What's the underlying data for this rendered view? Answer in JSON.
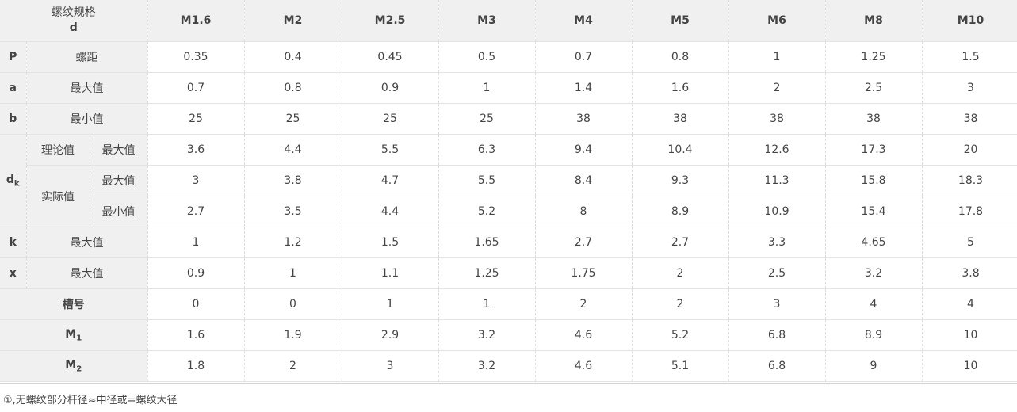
{
  "header": {
    "corner_line1": "螺纹规格",
    "corner_line2": "d",
    "sizes": [
      "M1.6",
      "M2",
      "M2.5",
      "M3",
      "M4",
      "M5",
      "M6",
      "M8",
      "M10"
    ]
  },
  "rows": {
    "P": {
      "symbol": "P",
      "label": "螺距",
      "values": [
        "0.35",
        "0.4",
        "0.45",
        "0.5",
        "0.7",
        "0.8",
        "1",
        "1.25",
        "1.5"
      ]
    },
    "a": {
      "symbol": "a",
      "label": "最大值",
      "values": [
        "0.7",
        "0.8",
        "0.9",
        "1",
        "1.4",
        "1.6",
        "2",
        "2.5",
        "3"
      ]
    },
    "b": {
      "symbol": "b",
      "label": "最小值",
      "values": [
        "25",
        "25",
        "25",
        "25",
        "38",
        "38",
        "38",
        "38",
        "38"
      ]
    },
    "dk": {
      "symbol": "d",
      "subscript": "k",
      "group_theory": "理论值",
      "group_actual": "实际值",
      "theory_max": {
        "label": "最大值",
        "values": [
          "3.6",
          "4.4",
          "5.5",
          "6.3",
          "9.4",
          "10.4",
          "12.6",
          "17.3",
          "20"
        ]
      },
      "actual_max": {
        "label": "最大值",
        "values": [
          "3",
          "3.8",
          "4.7",
          "5.5",
          "8.4",
          "9.3",
          "11.3",
          "15.8",
          "18.3"
        ]
      },
      "actual_min": {
        "label": "最小值",
        "values": [
          "2.7",
          "3.5",
          "4.4",
          "5.2",
          "8",
          "8.9",
          "10.9",
          "15.4",
          "17.8"
        ]
      }
    },
    "k": {
      "symbol": "k",
      "label": "最大值",
      "values": [
        "1",
        "1.2",
        "1.5",
        "1.65",
        "2.7",
        "2.7",
        "3.3",
        "4.65",
        "5"
      ]
    },
    "x": {
      "symbol": "x",
      "label": "最大值",
      "values": [
        "0.9",
        "1",
        "1.1",
        "1.25",
        "1.75",
        "2",
        "2.5",
        "3.2",
        "3.8"
      ]
    },
    "slot": {
      "label": "槽号",
      "values": [
        "0",
        "0",
        "1",
        "1",
        "2",
        "2",
        "3",
        "4",
        "4"
      ]
    },
    "M1": {
      "symbol": "M",
      "subscript": "1",
      "values": [
        "1.6",
        "1.9",
        "2.9",
        "3.2",
        "4.6",
        "5.2",
        "6.8",
        "8.9",
        "10"
      ]
    },
    "M2": {
      "symbol": "M",
      "subscript": "2",
      "values": [
        "1.8",
        "2",
        "3",
        "3.2",
        "4.6",
        "5.1",
        "6.8",
        "9",
        "10"
      ]
    }
  },
  "footnote": "①,无螺纹部分杆径≈中径或=螺纹大径"
}
